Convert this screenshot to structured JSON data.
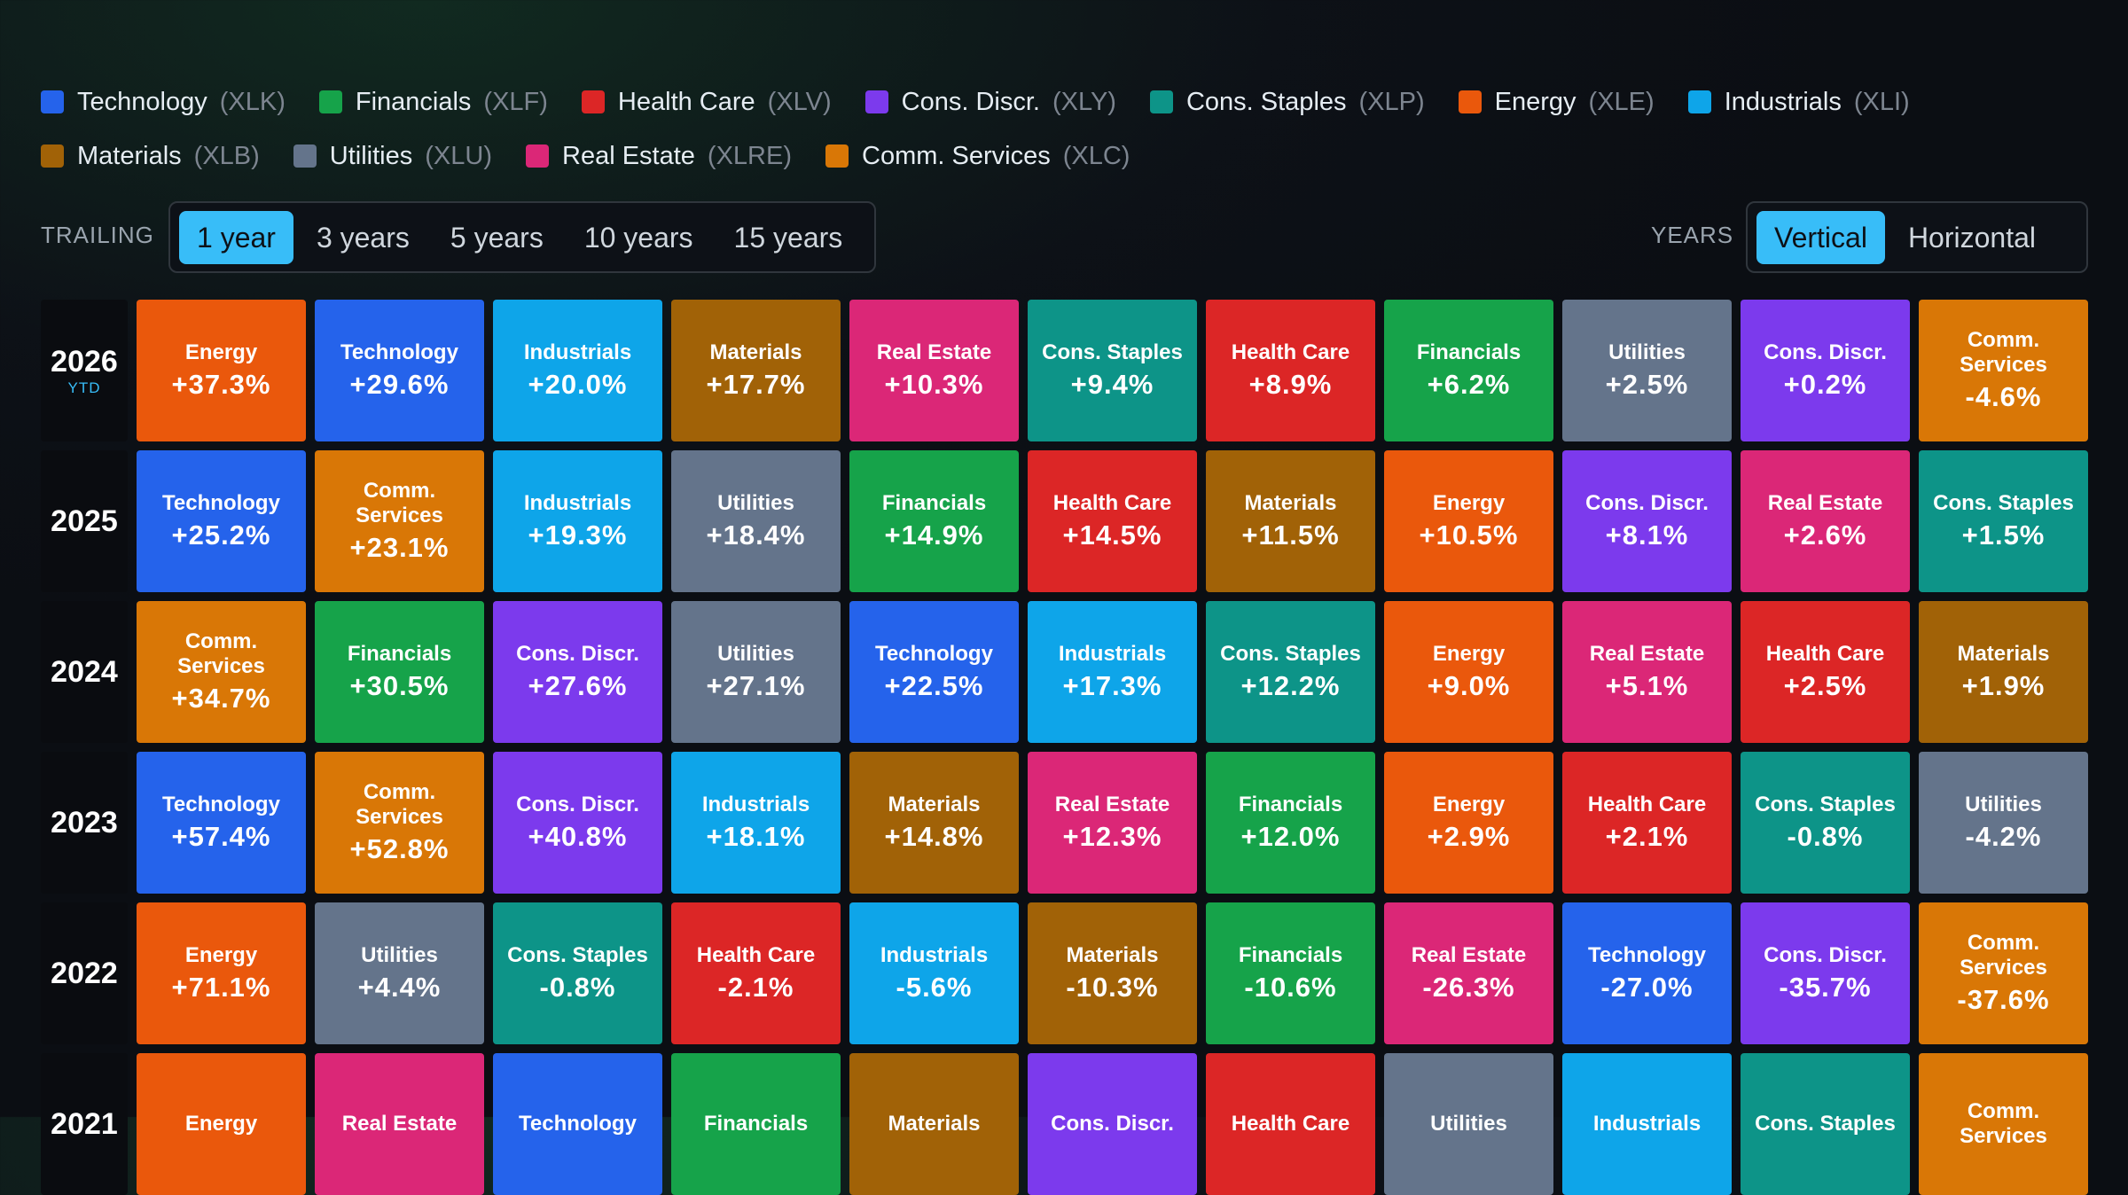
{
  "legend": [
    [
      {
        "name": "Technology",
        "ticker": "(XLK)",
        "color": "#2563eb"
      },
      {
        "name": "Financials",
        "ticker": "(XLF)",
        "color": "#16a34a"
      },
      {
        "name": "Health Care",
        "ticker": "(XLV)",
        "color": "#dc2626"
      },
      {
        "name": "Cons. Discr.",
        "ticker": "(XLY)",
        "color": "#7c3aed"
      },
      {
        "name": "Cons. Staples",
        "ticker": "(XLP)",
        "color": "#0d9488"
      },
      {
        "name": "Energy",
        "ticker": "(XLE)",
        "color": "#ea580c"
      },
      {
        "name": "Industrials",
        "ticker": "(XLI)",
        "color": "#0ea5e9"
      }
    ],
    [
      {
        "name": "Materials",
        "ticker": "(XLB)",
        "color": "#a16207"
      },
      {
        "name": "Utilities",
        "ticker": "(XLU)",
        "color": "#64748b"
      },
      {
        "name": "Real Estate",
        "ticker": "(XLRE)",
        "color": "#db2777"
      },
      {
        "name": "Comm. Services",
        "ticker": "(XLC)",
        "color": "#d97706"
      }
    ]
  ],
  "controls": {
    "trailing_label": "TRAILING",
    "trailing_options": [
      {
        "label": "1 year",
        "selected": true
      },
      {
        "label": "3 years"
      },
      {
        "label": "5 years"
      },
      {
        "label": "10 years"
      },
      {
        "label": "15 years"
      }
    ],
    "years_label": "YEARS",
    "years_options": [
      {
        "label": "Vertical",
        "selected": true
      },
      {
        "label": "Horizontal"
      }
    ]
  },
  "rows": [
    {
      "year": "2026",
      "note": "YTD",
      "cells": [
        {
          "sector": "Energy",
          "return": "+37.3%"
        },
        {
          "sector": "Technology",
          "return": "+29.6%"
        },
        {
          "sector": "Industrials",
          "return": "+20.0%"
        },
        {
          "sector": "Materials",
          "return": "+17.7%"
        },
        {
          "sector": "Real Estate",
          "return": "+10.3%"
        },
        {
          "sector": "Cons. Staples",
          "return": "+9.4%"
        },
        {
          "sector": "Health Care",
          "return": "+8.9%"
        },
        {
          "sector": "Financials",
          "return": "+6.2%"
        },
        {
          "sector": "Utilities",
          "return": "+2.5%"
        },
        {
          "sector": "Cons. Discr.",
          "return": "+0.2%"
        },
        {
          "sector": "Comm. Services",
          "return": "-4.6%"
        }
      ]
    },
    {
      "year": "2025",
      "cells": [
        {
          "sector": "Technology",
          "return": "+25.2%"
        },
        {
          "sector": "Comm. Services",
          "return": "+23.1%"
        },
        {
          "sector": "Industrials",
          "return": "+19.3%"
        },
        {
          "sector": "Utilities",
          "return": "+18.4%"
        },
        {
          "sector": "Financials",
          "return": "+14.9%"
        },
        {
          "sector": "Health Care",
          "return": "+14.5%"
        },
        {
          "sector": "Materials",
          "return": "+11.5%"
        },
        {
          "sector": "Energy",
          "return": "+10.5%"
        },
        {
          "sector": "Cons. Discr.",
          "return": "+8.1%"
        },
        {
          "sector": "Real Estate",
          "return": "+2.6%"
        },
        {
          "sector": "Cons. Staples",
          "return": "+1.5%"
        }
      ]
    },
    {
      "year": "2024",
      "cells": [
        {
          "sector": "Comm. Services",
          "return": "+34.7%"
        },
        {
          "sector": "Financials",
          "return": "+30.5%"
        },
        {
          "sector": "Cons. Discr.",
          "return": "+27.6%"
        },
        {
          "sector": "Utilities",
          "return": "+27.1%"
        },
        {
          "sector": "Technology",
          "return": "+22.5%"
        },
        {
          "sector": "Industrials",
          "return": "+17.3%"
        },
        {
          "sector": "Cons. Staples",
          "return": "+12.2%"
        },
        {
          "sector": "Energy",
          "return": "+9.0%"
        },
        {
          "sector": "Real Estate",
          "return": "+5.1%"
        },
        {
          "sector": "Health Care",
          "return": "+2.5%"
        },
        {
          "sector": "Materials",
          "return": "+1.9%"
        }
      ]
    },
    {
      "year": "2023",
      "cells": [
        {
          "sector": "Technology",
          "return": "+57.4%"
        },
        {
          "sector": "Comm. Services",
          "return": "+52.8%"
        },
        {
          "sector": "Cons. Discr.",
          "return": "+40.8%"
        },
        {
          "sector": "Industrials",
          "return": "+18.1%"
        },
        {
          "sector": "Materials",
          "return": "+14.8%"
        },
        {
          "sector": "Real Estate",
          "return": "+12.3%"
        },
        {
          "sector": "Financials",
          "return": "+12.0%"
        },
        {
          "sector": "Energy",
          "return": "+2.9%"
        },
        {
          "sector": "Health Care",
          "return": "+2.1%"
        },
        {
          "sector": "Cons. Staples",
          "return": "-0.8%"
        },
        {
          "sector": "Utilities",
          "return": "-4.2%"
        }
      ]
    },
    {
      "year": "2022",
      "cells": [
        {
          "sector": "Energy",
          "return": "+71.1%"
        },
        {
          "sector": "Utilities",
          "return": "+4.4%"
        },
        {
          "sector": "Cons. Staples",
          "return": "-0.8%"
        },
        {
          "sector": "Health Care",
          "return": "-2.1%"
        },
        {
          "sector": "Industrials",
          "return": "-5.6%"
        },
        {
          "sector": "Materials",
          "return": "-10.3%"
        },
        {
          "sector": "Financials",
          "return": "-10.6%"
        },
        {
          "sector": "Real Estate",
          "return": "-26.3%"
        },
        {
          "sector": "Technology",
          "return": "-27.0%"
        },
        {
          "sector": "Cons. Discr.",
          "return": "-35.7%"
        },
        {
          "sector": "Comm. Services",
          "return": "-37.6%"
        }
      ]
    },
    {
      "year": "2021",
      "cells": [
        {
          "sector": "Energy"
        },
        {
          "sector": "Real Estate"
        },
        {
          "sector": "Technology"
        },
        {
          "sector": "Financials"
        },
        {
          "sector": "Materials"
        },
        {
          "sector": "Cons. Discr."
        },
        {
          "sector": "Health Care"
        },
        {
          "sector": "Utilities"
        },
        {
          "sector": "Industrials"
        },
        {
          "sector": "Cons. Staples"
        },
        {
          "sector": "Comm. Services"
        }
      ]
    }
  ]
}
